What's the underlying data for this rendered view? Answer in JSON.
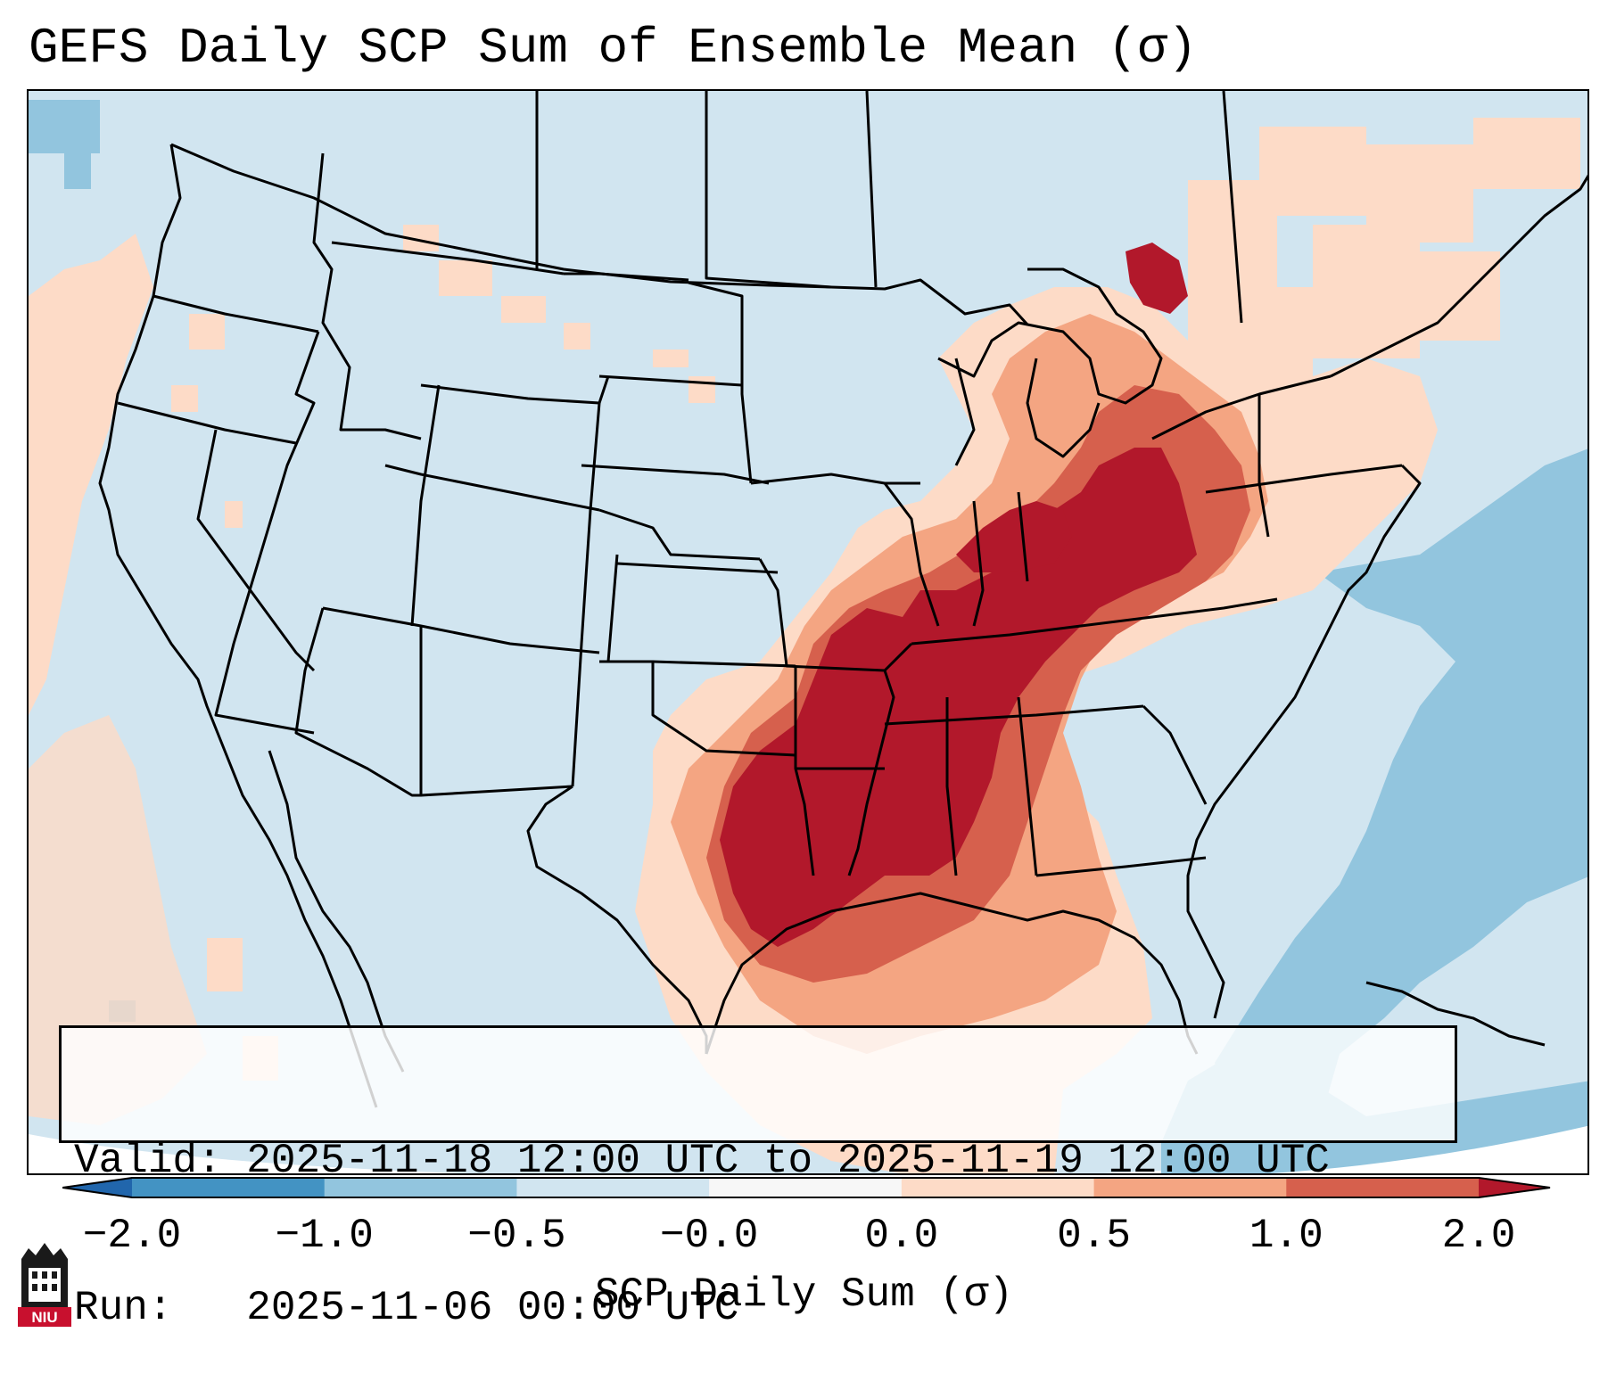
{
  "title": "GEFS Daily SCP Sum of Ensemble Mean (σ)",
  "info": {
    "valid_label": "Valid:",
    "valid_value": "2025-11-18 12:00 UTC to 2025-11-19 12:00 UTC",
    "run_label": "Run:",
    "run_value": "2025-11-06 00:00 UTC"
  },
  "colorbar": {
    "label": "SCP Daily Sum (σ)",
    "ticks": [
      "−2.0",
      "−1.0",
      "−0.5",
      "−0.0",
      "0.0",
      "0.5",
      "1.0",
      "2.0"
    ],
    "colors": {
      "under": "#2166ac",
      "b1": "#4393c3",
      "b2": "#92c5de",
      "b3": "#d1e5f0",
      "b4": "#f7f7f7",
      "b5": "#fddbc7",
      "b6": "#f4a582",
      "b7": "#d6604d",
      "over": "#b2182b"
    }
  },
  "map": {
    "region": "Contiguous United States",
    "background_color": "#d1e5f0",
    "high_anomaly_color": "#b2182b"
  },
  "logo": {
    "text": "NIU",
    "icon": "niu-building-logo-icon"
  }
}
